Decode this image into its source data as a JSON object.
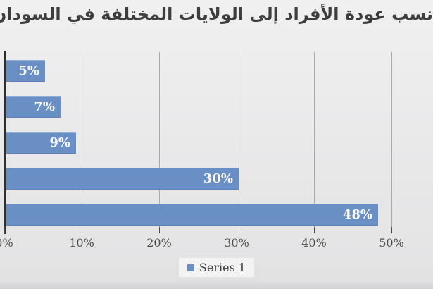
{
  "title": "نسب عودة الأفراد إلى الولايات المختلفة في السودان",
  "chart_data": {
    "type": "bar",
    "orientation": "horizontal",
    "title": "نسب عودة الأفراد إلى الولايات المختلفة في السودان",
    "series": [
      {
        "name": "Series 1",
        "values": [
          5,
          7,
          9,
          30,
          48
        ]
      }
    ],
    "value_labels": [
      "5%",
      "7%",
      "9%",
      "30%",
      "48%"
    ],
    "categories": [
      "",
      "",
      "",
      "",
      ""
    ],
    "xlabel": "",
    "ylabel": "",
    "xticks": [
      "0%",
      "10%",
      "20%",
      "30%",
      "40%",
      "50%"
    ],
    "xtick_values": [
      0,
      10,
      20,
      30,
      40,
      50
    ],
    "xlim": [
      0,
      50
    ],
    "grid": true,
    "value_labels_position": "inside-end",
    "legend_position": "bottom"
  },
  "legend": {
    "label": "Series 1"
  },
  "colors": {
    "bar": "#6a8fc5",
    "bar_label_text": "#fbfbfb",
    "title_text": "#3d3d3d",
    "axis_line": "#2e2e2e",
    "gridline": "#aaaaac",
    "tick_text": "#4f4f4f",
    "background": "#e9e9ea",
    "legend_background": "#f3f3f4"
  }
}
